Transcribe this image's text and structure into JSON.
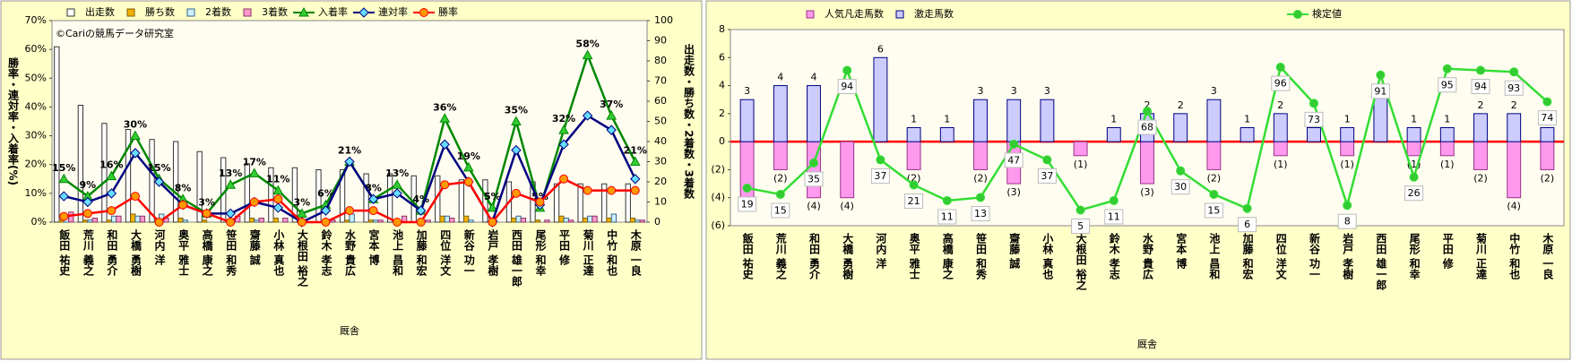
{
  "chart_data": [
    {
      "type": "bar_line",
      "barmode": "group",
      "legend": "top",
      "watermark": "©Cariの競馬データ研究室",
      "x_label": "厩舎",
      "y_label": "勝率・連対率・入着率(%)",
      "y2_label": "出走数・勝ち数・2着数・3着数",
      "categories": [
        "飯田 祐史",
        "荒川 義之",
        "和田 勇介",
        "大橋 勇樹",
        "河内 洋",
        "奥平 雅士",
        "高橋 康之",
        "笹田 和秀",
        "齋藤 誠",
        "小林 真也",
        "大根田 裕之",
        "鈴木 孝志",
        "水野 貴広",
        "宮本 博",
        "池上 昌和",
        "加藤 和宏",
        "四位 洋文",
        "新谷 功一",
        "岩戸 孝樹",
        "西田 雄一郎",
        "尾形 和幸",
        "平田 修",
        "菊川 正達",
        "中竹 和也",
        "木原 一良"
      ],
      "ylim": [
        0,
        70
      ],
      "yticks": [
        {
          "value": 0,
          "label": "0%"
        },
        {
          "value": 10,
          "label": "10%"
        },
        {
          "value": 20,
          "label": "20%"
        },
        {
          "value": 30,
          "label": "30%"
        },
        {
          "value": 40,
          "label": "40%"
        },
        {
          "value": 50,
          "label": "50%"
        },
        {
          "value": 60,
          "label": "60%"
        },
        {
          "value": 70,
          "label": "70%"
        }
      ],
      "y2lim": [
        0,
        100
      ],
      "y2ticks": [
        0,
        10,
        20,
        30,
        40,
        50,
        60,
        70,
        80,
        90,
        100
      ],
      "series": [
        {
          "name": "出走数",
          "kind": "bar",
          "axis": "y2",
          "color": "#ffffff",
          "stroke": "#333333",
          "values": [
            87,
            58,
            49,
            46,
            41,
            40,
            35,
            32,
            29,
            27,
            27,
            26,
            26,
            24,
            24,
            23,
            23,
            21,
            21,
            20,
            20,
            19,
            19,
            19,
            19
          ]
        },
        {
          "name": "勝ち数",
          "kind": "bar",
          "axis": "y2",
          "color": "#f0b000",
          "stroke": "#806000",
          "values": [
            1,
            1,
            1,
            4,
            0,
            2,
            1,
            0,
            2,
            2,
            0,
            0,
            1,
            1,
            0,
            0,
            3,
            3,
            0,
            2,
            1,
            3,
            2,
            2,
            2
          ]
        },
        {
          "name": "2着数",
          "kind": "bar",
          "axis": "y2",
          "color": "#ccf0ff",
          "stroke": "#336688",
          "values": [
            3,
            1,
            3,
            3,
            4,
            1,
            0,
            1,
            1,
            0,
            1,
            1,
            4,
            1,
            0,
            1,
            3,
            1,
            1,
            3,
            0,
            2,
            3,
            4,
            1
          ]
        },
        {
          "name": "3着数",
          "kind": "bar",
          "axis": "y2",
          "color": "#ff99cc",
          "stroke": "#883366",
          "values": [
            5,
            2,
            3,
            3,
            2,
            0,
            0,
            3,
            2,
            2,
            0,
            1,
            0,
            1,
            3,
            1,
            2,
            0,
            0,
            2,
            1,
            1,
            3,
            0,
            1
          ]
        },
        {
          "name": "入着率",
          "kind": "line",
          "axis": "y",
          "color": "#008800",
          "marker": "triangle",
          "marker_color": "#33cc33",
          "label_style": "plain",
          "values": [
            15,
            9,
            16,
            30,
            15,
            8,
            3,
            13,
            17,
            11,
            3,
            6,
            21,
            8,
            13,
            4,
            36,
            19,
            5,
            35,
            5,
            32,
            58,
            37,
            21
          ],
          "value_labels": [
            "15%",
            "9%",
            "16%",
            "30%",
            "15%",
            "8%",
            "3%",
            "13%",
            "17%",
            "11%",
            "3%",
            "6%",
            "21%",
            "8%",
            "13%",
            "4%",
            "36%",
            "19%",
            "5%",
            "35%",
            "5%",
            "32%",
            "58%",
            "37%",
            "21%"
          ]
        },
        {
          "name": "連対率",
          "kind": "line",
          "axis": "y",
          "color": "#000080",
          "marker": "diamond",
          "marker_color": "#66ddff",
          "values": [
            9,
            7,
            10,
            24,
            14,
            6,
            3,
            3,
            7,
            5,
            0,
            4,
            21,
            8,
            10,
            4,
            27,
            14,
            0,
            25,
            6,
            27,
            37,
            32,
            15
          ]
        },
        {
          "name": "勝率",
          "kind": "line",
          "axis": "y",
          "color": "#ff0000",
          "marker": "circle",
          "marker_color": "#ff9900",
          "values": [
            2,
            3,
            4,
            9,
            0,
            6,
            3,
            0,
            7,
            8,
            0,
            0,
            4,
            4,
            0,
            0,
            13,
            14,
            0,
            10,
            7,
            15,
            11,
            11,
            11
          ]
        }
      ]
    },
    {
      "type": "bar_line",
      "barmode": "overlay",
      "legend": "top",
      "x_label": "厩舎",
      "categories": [
        "飯田 祐史",
        "荒川 義之",
        "和田 勇介",
        "大橋 勇樹",
        "河内 洋",
        "奥平 雅士",
        "高橋 康之",
        "笹田 和秀",
        "齋藤 誠",
        "小林 真也",
        "大根田 裕之",
        "鈴木 孝志",
        "水野 貴広",
        "宮本 博",
        "池上 昌和",
        "加藤 和宏",
        "四位 洋文",
        "新谷 功一",
        "岩戸 孝樹",
        "西田 雄一郎",
        "尾形 和幸",
        "平田 修",
        "菊川 正達",
        "中竹 和也",
        "木原 一良"
      ],
      "ylim": [
        -6,
        8
      ],
      "yticks": [
        {
          "value": -6,
          "label": "(6)"
        },
        {
          "value": -4,
          "label": "(4)"
        },
        {
          "value": -2,
          "label": "(2)"
        },
        0,
        2,
        4,
        6,
        8
      ],
      "negative_tick_color": "#cc0000",
      "zero_line_color": "#ff0000",
      "y2lim": [
        -5,
        120
      ],
      "y2_visible": false,
      "series": [
        {
          "name": "人気凡走馬数",
          "kind": "bar",
          "axis": "y",
          "color": "#ff99ee",
          "stroke": "#993388",
          "label_color": "#dd0000",
          "values": [
            -4,
            -2,
            -4,
            -4,
            0,
            -2,
            0,
            -2,
            -3,
            0,
            -1,
            0,
            -3,
            0,
            -2,
            0,
            -1,
            0,
            -1,
            0,
            -1,
            -1,
            -2,
            -4,
            -2
          ],
          "value_labels": [
            "(4)",
            "(2)",
            "(4)",
            "(4)",
            null,
            "(2)",
            null,
            "(2)",
            "(3)",
            null,
            "(1)",
            null,
            "(3)",
            null,
            "(2)",
            null,
            "(1)",
            null,
            "(1)",
            null,
            "(1)",
            "(1)",
            "(2)",
            "(4)",
            "(2)"
          ]
        },
        {
          "name": "激走馬数",
          "kind": "bar",
          "axis": "y",
          "color": "#ccccff",
          "stroke": "#000080",
          "label_color": "#000000",
          "show_values": true,
          "values": [
            3,
            4,
            4,
            0,
            6,
            1,
            1,
            3,
            3,
            3,
            0,
            1,
            2,
            2,
            3,
            1,
            2,
            1,
            1,
            4,
            1,
            1,
            2,
            2,
            1
          ]
        },
        {
          "name": "検定値",
          "kind": "line",
          "axis": "y2",
          "color": "#33dd33",
          "marker": "circle",
          "marker_color": "#33cc33",
          "label_style": "box",
          "label_color": "#008888",
          "values": [
            19,
            15,
            35,
            94,
            37,
            21,
            11,
            13,
            47,
            37,
            5,
            11,
            68,
            30,
            15,
            6,
            96,
            73,
            8,
            91,
            26,
            95,
            94,
            93,
            74
          ]
        }
      ]
    }
  ]
}
